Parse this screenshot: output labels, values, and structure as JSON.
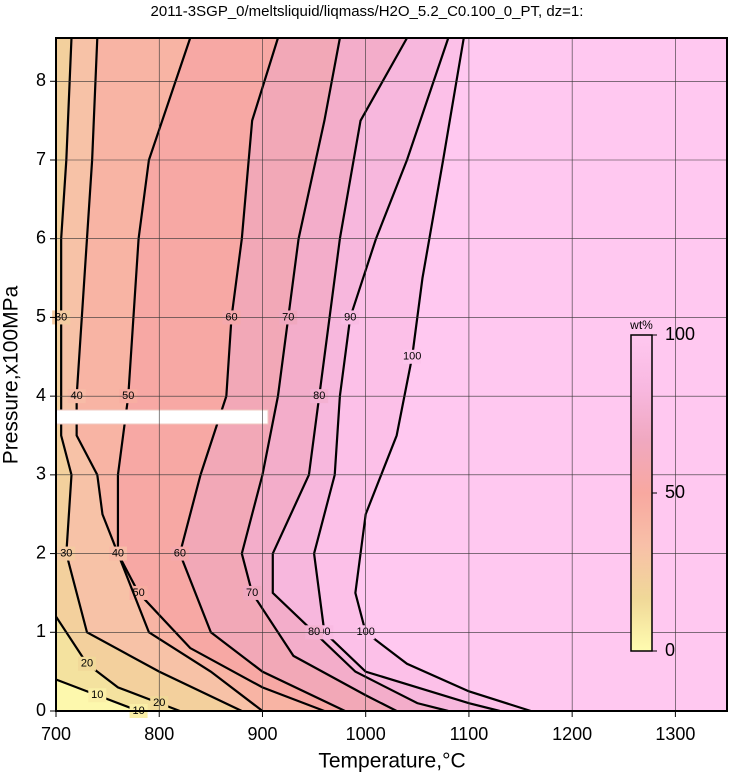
{
  "chart_data": {
    "type": "contour",
    "title": "2011-3SGP_0/meltsliquid/liqmass/H2O_5.2_C0.100_0_PT, dz=1:",
    "xlabel": "Temperature,°C",
    "ylabel": "Pressure,x100MPa",
    "xlim": [
      700,
      1350
    ],
    "xticks": [
      700,
      800,
      900,
      1000,
      1100,
      1200,
      1300
    ],
    "ylim": [
      0,
      8.55
    ],
    "yticks": [
      0,
      1,
      2,
      3,
      4,
      5,
      6,
      7,
      8
    ],
    "grid": true,
    "colorbar": {
      "label": "wt%",
      "zlim": [
        0,
        100
      ],
      "zticks": [
        0,
        50,
        100
      ],
      "colors": [
        "#fffcb0",
        "#f0d898",
        "#f8c0a8",
        "#f8a8a0",
        "#f0a8c0",
        "#f8b8e0",
        "#ffc8f0"
      ]
    },
    "contours": [
      {
        "level": 100,
        "x": [
          1095,
          1075,
          1055,
          1045,
          1030,
          1000,
          990,
          1000,
          1040,
          1100,
          1160
        ],
        "y": [
          8.55,
          7,
          5.5,
          4.5,
          3.5,
          2.5,
          1.5,
          1,
          0.6,
          0.25,
          0
        ]
      },
      {
        "level": 90,
        "x": [
          1080,
          1040,
          1010,
          985,
          975,
          970,
          950,
          960,
          1000,
          1100,
          1130
        ],
        "y": [
          8.55,
          7,
          6,
          5,
          4,
          3,
          2,
          1,
          0.5,
          0.1,
          0
        ]
      },
      {
        "level": 80,
        "x": [
          1040,
          995,
          975,
          965,
          955,
          945,
          910,
          910,
          950,
          990,
          1050,
          1080
        ],
        "y": [
          8.55,
          7.5,
          6,
          5,
          4,
          3,
          2,
          1.5,
          1,
          0.5,
          0.1,
          0
        ]
      },
      {
        "level": 70,
        "x": [
          975,
          960,
          935,
          925,
          915,
          900,
          880,
          890,
          930,
          1000,
          1030
        ],
        "y": [
          8.55,
          7.5,
          6,
          5,
          4,
          3,
          2,
          1.5,
          0.7,
          0.2,
          0
        ]
      },
      {
        "level": 60,
        "x": [
          915,
          890,
          880,
          870,
          865,
          840,
          820,
          850,
          900,
          980
        ],
        "y": [
          8.55,
          7.5,
          6,
          5,
          4,
          3,
          2,
          1,
          0.5,
          0
        ]
      },
      {
        "level": 50,
        "x": [
          830,
          790,
          780,
          775,
          770,
          765,
          760,
          760,
          780,
          830,
          900,
          960
        ],
        "y": [
          8.55,
          7,
          6,
          5,
          4,
          3.5,
          3,
          2,
          1.5,
          0.8,
          0.3,
          0
        ]
      },
      {
        "level": 40,
        "x": [
          740,
          735,
          730,
          725,
          720,
          720,
          740,
          745,
          760,
          790,
          850,
          900
        ],
        "y": [
          8.55,
          7,
          6,
          5,
          4,
          3.5,
          3,
          2.5,
          2,
          1,
          0.5,
          0
        ]
      },
      {
        "level": 30,
        "x": [
          715,
          710,
          705,
          705,
          705,
          705,
          715,
          710,
          730,
          800,
          880
        ],
        "y": [
          8.55,
          7,
          6,
          5,
          4,
          3.5,
          3,
          2,
          1,
          0.5,
          0
        ]
      },
      {
        "level": 20,
        "x": [
          700,
          730,
          760,
          800,
          820
        ],
        "y": [
          1.2,
          0.6,
          0.3,
          0.1,
          0
        ]
      },
      {
        "level": 10,
        "x": [
          700,
          740,
          780
        ],
        "y": [
          0.4,
          0.2,
          0
        ]
      }
    ]
  }
}
